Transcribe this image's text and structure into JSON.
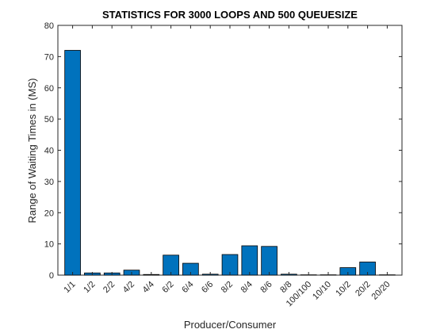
{
  "chart_data": {
    "type": "bar",
    "title": "STATISTICS FOR 3000 LOOPS AND 500 QUEUESIZE",
    "xlabel": "Producer/Consumer",
    "ylabel": "Range of Waiting Times in (MS)",
    "categories": [
      "1/1",
      "1/2",
      "2/2",
      "4/2",
      "4/4",
      "6/2",
      "6/4",
      "6/6",
      "8/2",
      "8/4",
      "8/6",
      "8/8",
      "100/100",
      "10/10",
      "10/2",
      "20/2",
      "20/20"
    ],
    "values": [
      72,
      0.7,
      0.7,
      1.6,
      0.2,
      6.4,
      3.8,
      0.3,
      6.6,
      9.4,
      9.2,
      0.3,
      0.1,
      0.1,
      2.4,
      4.2,
      0.1
    ],
    "ylim": [
      0,
      80
    ],
    "yticks": [
      0,
      10,
      20,
      30,
      40,
      50,
      60,
      70,
      80
    ],
    "bar_color": "#0072BD",
    "grid": false,
    "box": true
  }
}
